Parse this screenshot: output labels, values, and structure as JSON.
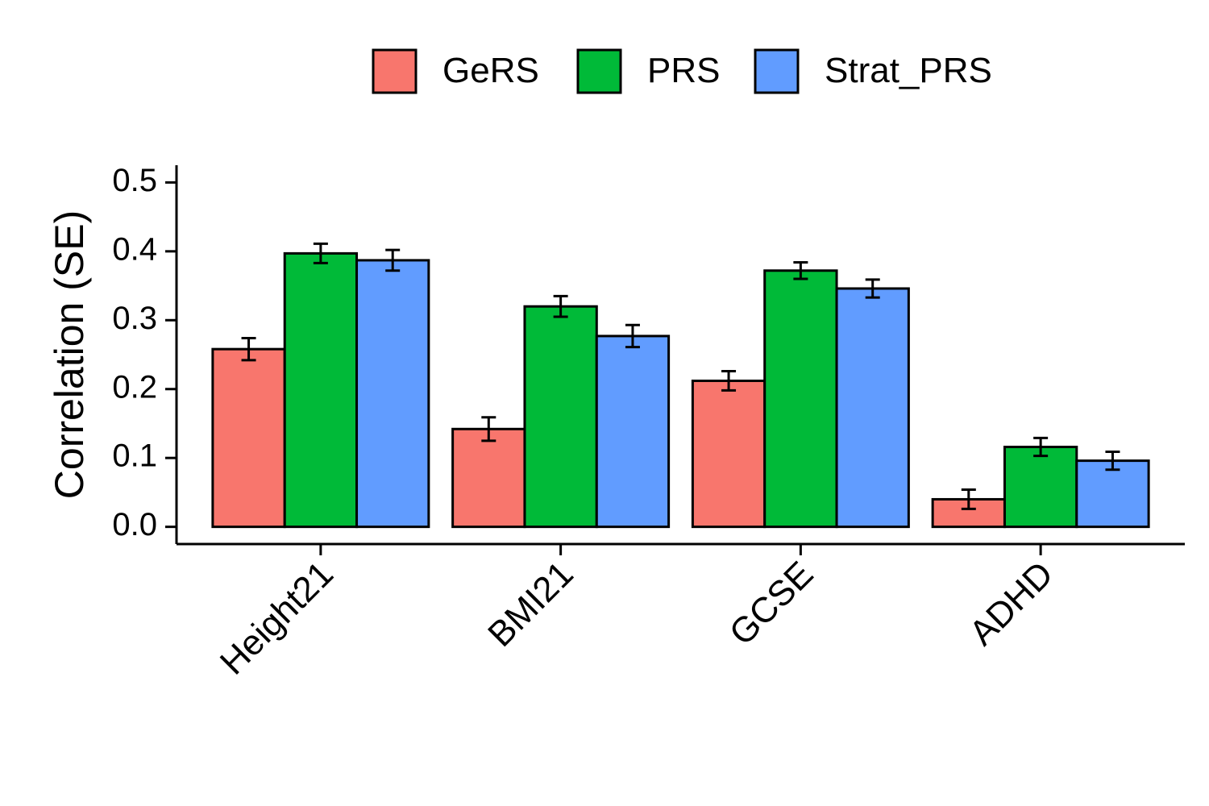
{
  "chart_data": {
    "type": "bar",
    "ylabel": "Correlation (SE)",
    "ylim": [
      -0.025,
      0.525
    ],
    "yticks": [
      "0.0",
      "0.1",
      "0.2",
      "0.3",
      "0.4",
      "0.5"
    ],
    "categories": [
      "Height21",
      "BMI21",
      "GCSE",
      "ADHD"
    ],
    "legend_position": "top",
    "series": [
      {
        "name": "GeRS",
        "color": "#F8766D",
        "values": [
          0.258,
          0.142,
          0.212,
          0.04
        ],
        "se": [
          0.016,
          0.017,
          0.014,
          0.014
        ]
      },
      {
        "name": "PRS",
        "color": "#00BA38",
        "values": [
          0.397,
          0.32,
          0.372,
          0.116
        ],
        "se": [
          0.014,
          0.015,
          0.012,
          0.013
        ]
      },
      {
        "name": "Strat_PRS",
        "color": "#619CFF",
        "values": [
          0.387,
          0.277,
          0.346,
          0.096
        ],
        "se": [
          0.015,
          0.016,
          0.013,
          0.013
        ]
      }
    ]
  }
}
